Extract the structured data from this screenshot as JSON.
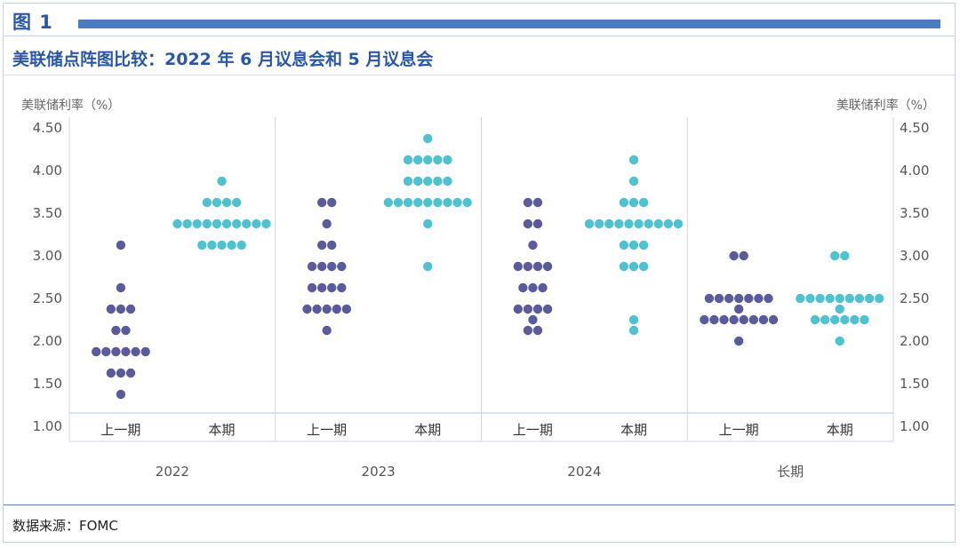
{
  "figure": {
    "label": "图 1",
    "title": "美联储点阵图比较：2022 年 6 月议息会和 5 月议息会",
    "source": "数据来源：FOMC"
  },
  "colors": {
    "previous": "#5b5a9b",
    "current": "#4fc1cf",
    "title": "#2a57a4"
  },
  "chart_data": {
    "type": "scatter",
    "title": "美联储点阵图比较：2022 年 6 月议息会和 5 月议息会",
    "ylabel_left": "美联储利率（%）",
    "ylabel_right": "美联储利率（%）",
    "ylim": [
      1.0,
      4.5
    ],
    "yticks": [
      "4.50",
      "4.00",
      "3.50",
      "3.00",
      "2.50",
      "2.00",
      "1.50",
      "1.00"
    ],
    "series_labels": {
      "previous": "上一期",
      "current": "本期"
    },
    "groups": [
      {
        "label": "2022",
        "previous": [
          [
            3.125,
            1
          ],
          [
            2.625,
            1
          ],
          [
            2.375,
            3
          ],
          [
            2.125,
            2
          ],
          [
            1.875,
            6
          ],
          [
            1.625,
            3
          ],
          [
            1.375,
            1
          ]
        ],
        "current": [
          [
            3.875,
            1
          ],
          [
            3.625,
            4
          ],
          [
            3.375,
            10
          ],
          [
            3.125,
            5
          ]
        ]
      },
      {
        "label": "2023",
        "previous": [
          [
            3.625,
            2
          ],
          [
            3.375,
            1
          ],
          [
            3.125,
            2
          ],
          [
            2.875,
            4
          ],
          [
            2.625,
            4
          ],
          [
            2.375,
            5
          ],
          [
            2.125,
            1
          ]
        ],
        "current": [
          [
            4.375,
            1
          ],
          [
            4.125,
            5
          ],
          [
            3.875,
            5
          ],
          [
            3.625,
            9
          ],
          [
            3.375,
            1
          ],
          [
            2.875,
            1
          ]
        ]
      },
      {
        "label": "2024",
        "previous": [
          [
            3.625,
            2
          ],
          [
            3.375,
            2
          ],
          [
            3.125,
            1
          ],
          [
            2.875,
            4
          ],
          [
            2.625,
            3
          ],
          [
            2.375,
            4
          ],
          [
            2.25,
            1
          ],
          [
            2.125,
            2
          ]
        ],
        "current": [
          [
            4.125,
            1
          ],
          [
            3.875,
            1
          ],
          [
            3.625,
            3
          ],
          [
            3.375,
            10
          ],
          [
            3.125,
            3
          ],
          [
            2.875,
            3
          ],
          [
            2.25,
            1
          ],
          [
            2.125,
            1
          ]
        ]
      },
      {
        "label": "长期",
        "previous": [
          [
            3.0,
            2
          ],
          [
            2.5,
            7
          ],
          [
            2.375,
            1
          ],
          [
            2.25,
            8
          ],
          [
            2.0,
            1
          ]
        ],
        "current": [
          [
            3.0,
            2
          ],
          [
            2.5,
            9
          ],
          [
            2.375,
            1
          ],
          [
            2.25,
            6
          ],
          [
            2.0,
            1
          ]
        ]
      }
    ],
    "grid": false,
    "legend": "none"
  }
}
